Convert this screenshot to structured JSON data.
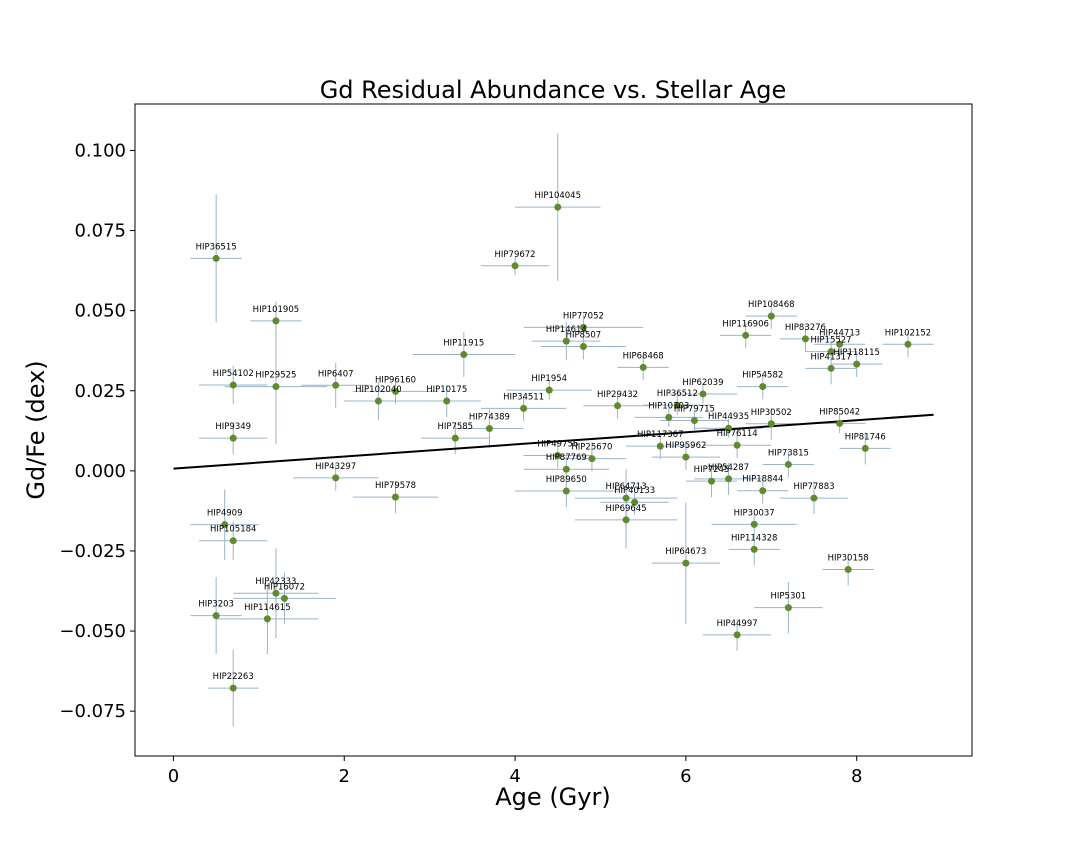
{
  "chart_data": {
    "type": "scatter",
    "title": "Gd Residual Abundance vs. Stellar Age",
    "xlabel": "Age (Gyr)",
    "ylabel": "Gd/Fe (dex)",
    "xlim": [
      -0.45,
      9.35
    ],
    "ylim": [
      -0.089,
      0.1145
    ],
    "xticks": [
      0,
      2,
      4,
      6,
      8
    ],
    "xtick_labels": [
      "0",
      "2",
      "4",
      "6",
      "8"
    ],
    "yticks": [
      -0.075,
      -0.05,
      -0.025,
      0.0,
      0.025,
      0.05,
      0.075,
      0.1
    ],
    "ytick_labels": [
      "−0.075",
      "−0.050",
      "−0.025",
      "0.000",
      "0.025",
      "0.050",
      "0.075",
      "0.100"
    ],
    "grid": false,
    "colors": {
      "point": "#5f8a2e",
      "errorbar": "#9ab4cc",
      "fit": "#000000"
    },
    "fit_line": {
      "x": [
        0.0,
        8.9
      ],
      "y": [
        0.0007,
        0.0175
      ]
    },
    "points": [
      {
        "label": "HIP36515",
        "x": 0.5,
        "y": 0.0663,
        "xerr": 0.3,
        "yerr": 0.02
      },
      {
        "label": "HIP101905",
        "x": 1.2,
        "y": 0.0468,
        "xerr": 0.3,
        "yerr": 0.006
      },
      {
        "label": "HIP54102",
        "x": 0.7,
        "y": 0.0268,
        "xerr": 0.4,
        "yerr": 0.006
      },
      {
        "label": "HIP29525",
        "x": 1.2,
        "y": 0.0263,
        "xerr": 0.6,
        "yerr": 0.018
      },
      {
        "label": "HIP6407",
        "x": 1.9,
        "y": 0.0267,
        "xerr": 0.4,
        "yerr": 0.007
      },
      {
        "label": "HIP9349",
        "x": 0.7,
        "y": 0.0102,
        "xerr": 0.4,
        "yerr": 0.005
      },
      {
        "label": "HIP104045",
        "x": 4.5,
        "y": 0.0823,
        "xerr": 0.5,
        "yerr": 0.023
      },
      {
        "label": "HIP79672",
        "x": 4.0,
        "y": 0.064,
        "xerr": 0.4,
        "yerr": 0.003
      },
      {
        "label": "HIP11915",
        "x": 3.4,
        "y": 0.0363,
        "xerr": 0.6,
        "yerr": 0.007
      },
      {
        "label": "HIP96160",
        "x": 2.6,
        "y": 0.0248,
        "xerr": 0.5,
        "yerr": 0.004
      },
      {
        "label": "HIP102040",
        "x": 2.4,
        "y": 0.0218,
        "xerr": 0.4,
        "yerr": 0.006
      },
      {
        "label": "HIP10175",
        "x": 3.2,
        "y": 0.0218,
        "xerr": 0.4,
        "yerr": 0.005
      },
      {
        "label": "HIP7585",
        "x": 3.3,
        "y": 0.0102,
        "xerr": 0.4,
        "yerr": 0.005
      },
      {
        "label": "HIP74389",
        "x": 3.7,
        "y": 0.0132,
        "xerr": 0.4,
        "yerr": 0.006
      },
      {
        "label": "HIP43297",
        "x": 1.9,
        "y": -0.0022,
        "xerr": 0.5,
        "yerr": 0.004
      },
      {
        "label": "HIP79578",
        "x": 2.6,
        "y": -0.0082,
        "xerr": 0.5,
        "yerr": 0.005
      },
      {
        "label": "HIP4909",
        "x": 0.6,
        "y": -0.0168,
        "xerr": 0.4,
        "yerr": 0.011
      },
      {
        "label": "HIP105184",
        "x": 0.7,
        "y": -0.0218,
        "xerr": 0.4,
        "yerr": 0.006
      },
      {
        "label": "HIP42333",
        "x": 1.2,
        "y": -0.0382,
        "xerr": 0.5,
        "yerr": 0.014
      },
      {
        "label": "HIP16072",
        "x": 1.3,
        "y": -0.0398,
        "xerr": 0.6,
        "yerr": 0.008
      },
      {
        "label": "HIP3203",
        "x": 0.5,
        "y": -0.0452,
        "xerr": 0.3,
        "yerr": 0.012
      },
      {
        "label": "HIP114615",
        "x": 1.1,
        "y": -0.0462,
        "xerr": 0.6,
        "yerr": 0.011
      },
      {
        "label": "HIP22263",
        "x": 0.7,
        "y": -0.0678,
        "xerr": 0.3,
        "yerr": 0.012
      },
      {
        "label": "HIP77052",
        "x": 4.8,
        "y": 0.0448,
        "xerr": 0.7,
        "yerr": 0.004
      },
      {
        "label": "HIP14614",
        "x": 4.6,
        "y": 0.0405,
        "xerr": 0.4,
        "yerr": 0.006
      },
      {
        "label": "HIP8507",
        "x": 4.8,
        "y": 0.0388,
        "xerr": 0.5,
        "yerr": 0.004
      },
      {
        "label": "HIP1954",
        "x": 4.4,
        "y": 0.0252,
        "xerr": 0.5,
        "yerr": 0.003
      },
      {
        "label": "HIP34511",
        "x": 4.1,
        "y": 0.0195,
        "xerr": 0.5,
        "yerr": 0.004
      },
      {
        "label": "HIP68468",
        "x": 5.5,
        "y": 0.0323,
        "xerr": 0.3,
        "yerr": 0.004
      },
      {
        "label": "HIP29432",
        "x": 5.2,
        "y": 0.0203,
        "xerr": 0.4,
        "yerr": 0.004
      },
      {
        "label": "HIP62039",
        "x": 6.2,
        "y": 0.024,
        "xerr": 0.4,
        "yerr": 0.003
      },
      {
        "label": "HIP36512",
        "x": 5.9,
        "y": 0.0205,
        "xerr": 0.4,
        "yerr": 0.003
      },
      {
        "label": "HIP10303",
        "x": 5.8,
        "y": 0.0167,
        "xerr": 0.4,
        "yerr": 0.003
      },
      {
        "label": "HIP79715",
        "x": 6.1,
        "y": 0.0157,
        "xerr": 0.4,
        "yerr": 0.003
      },
      {
        "label": "HIP49756",
        "x": 4.5,
        "y": 0.0048,
        "xerr": 0.4,
        "yerr": 0.004
      },
      {
        "label": "HIP25670",
        "x": 4.9,
        "y": 0.0038,
        "xerr": 0.4,
        "yerr": 0.004
      },
      {
        "label": "HIP87769",
        "x": 4.6,
        "y": 0.0005,
        "xerr": 0.5,
        "yerr": 0.004
      },
      {
        "label": "HIP89650",
        "x": 4.6,
        "y": -0.0063,
        "xerr": 0.6,
        "yerr": 0.005
      },
      {
        "label": "HIP64713",
        "x": 5.3,
        "y": -0.0085,
        "xerr": 0.6,
        "yerr": 0.009
      },
      {
        "label": "HIP40133",
        "x": 5.4,
        "y": -0.0098,
        "xerr": 0.4,
        "yerr": 0.004
      },
      {
        "label": "HIP69645",
        "x": 5.3,
        "y": -0.0153,
        "xerr": 0.6,
        "yerr": 0.009
      },
      {
        "label": "HIP117367",
        "x": 5.7,
        "y": 0.0077,
        "xerr": 0.4,
        "yerr": 0.004
      },
      {
        "label": "HIP95962",
        "x": 6.0,
        "y": 0.0043,
        "xerr": 0.4,
        "yerr": 0.004
      },
      {
        "label": "HIP44935",
        "x": 6.5,
        "y": 0.0133,
        "xerr": 0.4,
        "yerr": 0.003
      },
      {
        "label": "HIP76114",
        "x": 6.6,
        "y": 0.008,
        "xerr": 0.4,
        "yerr": 0.004
      },
      {
        "label": "HIP7245",
        "x": 6.3,
        "y": -0.0032,
        "xerr": 0.3,
        "yerr": 0.005
      },
      {
        "label": "HIP54287",
        "x": 6.5,
        "y": -0.0025,
        "xerr": 0.4,
        "yerr": 0.005
      },
      {
        "label": "HIP64673",
        "x": 6.0,
        "y": -0.0288,
        "xerr": 0.4,
        "yerr": 0.019
      },
      {
        "label": "HIP108468",
        "x": 7.0,
        "y": 0.0483,
        "xerr": 0.3,
        "yerr": 0.004
      },
      {
        "label": "HIP116906",
        "x": 6.7,
        "y": 0.0423,
        "xerr": 0.3,
        "yerr": 0.004
      },
      {
        "label": "HIP83276",
        "x": 7.4,
        "y": 0.0412,
        "xerr": 0.3,
        "yerr": 0.004
      },
      {
        "label": "HIP44713",
        "x": 7.8,
        "y": 0.0395,
        "xerr": 0.3,
        "yerr": 0.003
      },
      {
        "label": "HIP15527",
        "x": 7.7,
        "y": 0.0372,
        "xerr": 0.3,
        "yerr": 0.003
      },
      {
        "label": "HIP41317",
        "x": 7.7,
        "y": 0.032,
        "xerr": 0.3,
        "yerr": 0.005
      },
      {
        "label": "HIP118115",
        "x": 8.0,
        "y": 0.0333,
        "xerr": 0.3,
        "yerr": 0.004
      },
      {
        "label": "HIP102152",
        "x": 8.6,
        "y": 0.0395,
        "xerr": 0.3,
        "yerr": 0.004
      },
      {
        "label": "HIP54582",
        "x": 6.9,
        "y": 0.0263,
        "xerr": 0.3,
        "yerr": 0.004
      },
      {
        "label": "HIP30502",
        "x": 7.0,
        "y": 0.0147,
        "xerr": 0.3,
        "yerr": 0.005
      },
      {
        "label": "HIP85042",
        "x": 7.8,
        "y": 0.0148,
        "xerr": 0.3,
        "yerr": 0.003
      },
      {
        "label": "HIP81746",
        "x": 8.1,
        "y": 0.007,
        "xerr": 0.3,
        "yerr": 0.005
      },
      {
        "label": "HIP73815",
        "x": 7.2,
        "y": 0.002,
        "xerr": 0.3,
        "yerr": 0.004
      },
      {
        "label": "HIP18844",
        "x": 6.9,
        "y": -0.0062,
        "xerr": 0.3,
        "yerr": 0.004
      },
      {
        "label": "HIP77883",
        "x": 7.5,
        "y": -0.0085,
        "xerr": 0.4,
        "yerr": 0.005
      },
      {
        "label": "HIP30037",
        "x": 6.8,
        "y": -0.0167,
        "xerr": 0.5,
        "yerr": 0.003
      },
      {
        "label": "HIP114328",
        "x": 6.8,
        "y": -0.0245,
        "xerr": 0.3,
        "yerr": 0.005
      },
      {
        "label": "HIP30158",
        "x": 7.9,
        "y": -0.0308,
        "xerr": 0.3,
        "yerr": 0.005
      },
      {
        "label": "HIP5301",
        "x": 7.2,
        "y": -0.0427,
        "xerr": 0.4,
        "yerr": 0.008
      },
      {
        "label": "HIP44997",
        "x": 6.6,
        "y": -0.0512,
        "xerr": 0.4,
        "yerr": 0.005
      }
    ]
  }
}
